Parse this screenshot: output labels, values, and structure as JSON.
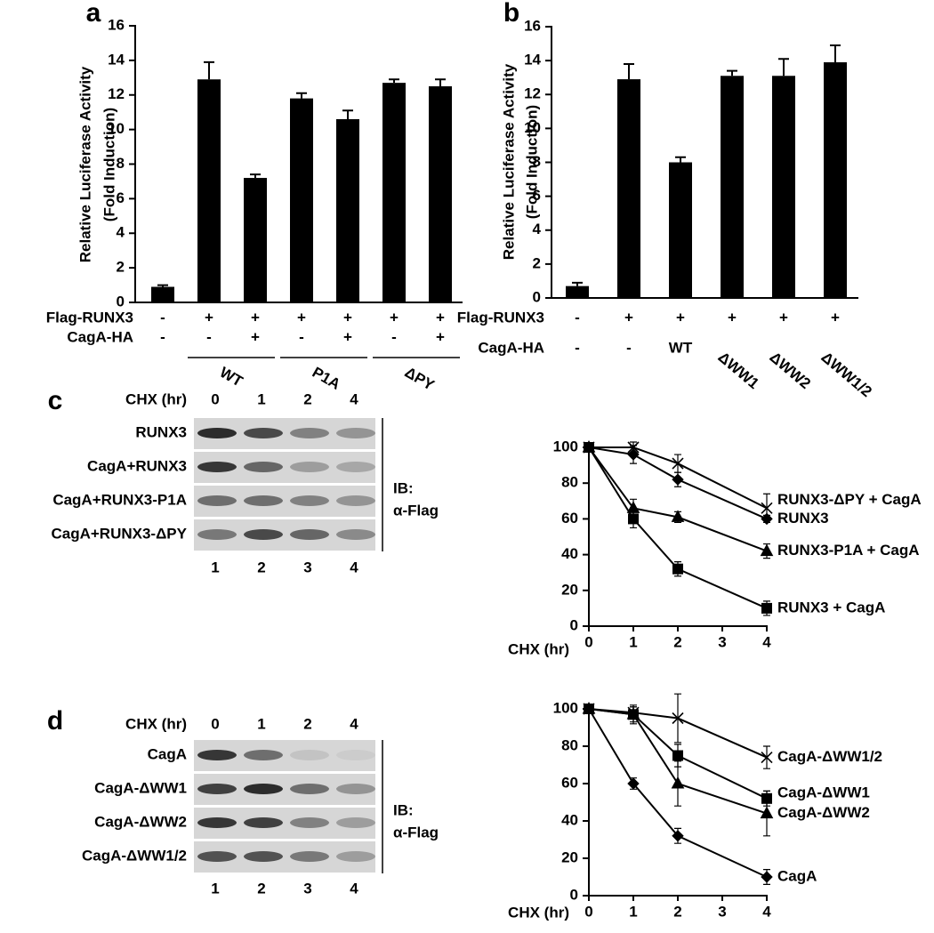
{
  "chart_data": [
    {
      "type": "bar",
      "panel": "a",
      "ylabel": [
        "Relative Luciferase Activity",
        "(Fold Induction)"
      ],
      "values": [
        0.9,
        12.9,
        7.2,
        11.8,
        10.6,
        12.7,
        12.5
      ],
      "errors": [
        0.1,
        1.0,
        0.2,
        0.3,
        0.5,
        0.2,
        0.4
      ],
      "color": "#000000",
      "ylim": [
        0,
        16
      ],
      "yticks": [
        0,
        2,
        4,
        6,
        8,
        10,
        12,
        14,
        16
      ],
      "conditions": [
        {
          "name": "Flag-RUNX3",
          "values": [
            "-",
            "+",
            "+",
            "+",
            "+",
            "+",
            "+"
          ]
        },
        {
          "name": "CagA-HA",
          "values": [
            "-",
            "-",
            "+",
            "-",
            "+",
            "-",
            "+"
          ]
        }
      ],
      "groups": [
        {
          "label": "WT",
          "from": 1,
          "to": 2
        },
        {
          "label": "P1A",
          "from": 3,
          "to": 4
        },
        {
          "label": "ΔPY",
          "from": 5,
          "to": 6
        }
      ]
    },
    {
      "type": "bar",
      "panel": "b",
      "ylabel": [
        "Relative Luciferase Activity",
        "(Fold Induction)"
      ],
      "values": [
        0.7,
        12.9,
        8.0,
        13.1,
        13.1,
        13.9
      ],
      "errors": [
        0.2,
        0.9,
        0.3,
        0.3,
        1.0,
        1.0
      ],
      "color": "#000000",
      "ylim": [
        0,
        16
      ],
      "yticks": [
        0,
        2,
        4,
        6,
        8,
        10,
        12,
        14,
        16
      ],
      "conditions": [
        {
          "name": "Flag-RUNX3",
          "values": [
            "-",
            "+",
            "+",
            "+",
            "+",
            "+"
          ]
        },
        {
          "name": "CagA-HA",
          "values": [
            "-",
            "-",
            "WT",
            "ΔWW1",
            "ΔWW2",
            "ΔWW1/2"
          ]
        }
      ]
    },
    {
      "type": "line",
      "xlabel": "CHX (hr)",
      "x": [
        0,
        1,
        2,
        4
      ],
      "xlim": [
        0,
        4
      ],
      "xticks": [
        0,
        1,
        2,
        3,
        4
      ],
      "ylim": [
        0,
        100
      ],
      "yticks": [
        0,
        20,
        40,
        60,
        80,
        100
      ],
      "series": [
        {
          "name": "RUNX3-ΔPY + CagA",
          "color": "#000000",
          "marker": "x",
          "values": [
            100,
            100,
            91,
            66
          ],
          "errors": [
            0,
            3,
            5,
            8
          ]
        },
        {
          "name": "RUNX3",
          "color": "#000000",
          "marker": "diamond",
          "values": [
            100,
            96,
            82,
            60
          ],
          "errors": [
            0,
            5,
            4,
            2
          ]
        },
        {
          "name": "RUNX3-P1A + CagA",
          "color": "#000000",
          "marker": "triangle",
          "values": [
            100,
            66,
            61,
            42
          ],
          "errors": [
            0,
            5,
            3,
            4
          ]
        },
        {
          "name": "RUNX3 + CagA",
          "color": "#000000",
          "marker": "square",
          "values": [
            100,
            60,
            32,
            10
          ],
          "errors": [
            0,
            5,
            4,
            4
          ]
        }
      ]
    },
    {
      "type": "line",
      "xlabel": "CHX (hr)",
      "x": [
        0,
        1,
        2,
        4
      ],
      "xlim": [
        0,
        4
      ],
      "xticks": [
        0,
        1,
        2,
        3,
        4
      ],
      "ylim": [
        0,
        100
      ],
      "yticks": [
        0,
        20,
        40,
        60,
        80,
        100
      ],
      "series": [
        {
          "name": "CagA-ΔWW1/2",
          "color": "#000000",
          "marker": "x",
          "values": [
            100,
            98,
            95,
            74
          ],
          "errors": [
            0,
            3,
            13,
            6
          ]
        },
        {
          "name": "CagA-ΔWW1",
          "color": "#000000",
          "marker": "square",
          "values": [
            100,
            97,
            75,
            52
          ],
          "errors": [
            0,
            4,
            6,
            4
          ]
        },
        {
          "name": "CagA-ΔWW2",
          "color": "#000000",
          "marker": "triangle",
          "values": [
            100,
            97,
            60,
            44
          ],
          "errors": [
            0,
            5,
            12,
            12
          ]
        },
        {
          "name": "CagA",
          "color": "#000000",
          "marker": "diamond",
          "values": [
            100,
            60,
            32,
            10
          ],
          "errors": [
            0,
            3,
            4,
            4
          ]
        }
      ]
    }
  ],
  "blots": [
    {
      "panel": "c",
      "time_label": "CHX (hr)",
      "times": [
        "0",
        "1",
        "2",
        "4"
      ],
      "rows": [
        "RUNX3",
        "CagA+RUNX3",
        "CagA+RUNX3-P1A",
        "CagA+RUNX3-ΔPY"
      ],
      "lanes": [
        "1",
        "2",
        "3",
        "4"
      ],
      "ib": "IB:",
      "antibody": "α-Flag"
    },
    {
      "panel": "d",
      "time_label": "CHX (hr)",
      "times": [
        "0",
        "1",
        "2",
        "4"
      ],
      "rows": [
        "CagA",
        "CagA-ΔWW1",
        "CagA-ΔWW2",
        "CagA-ΔWW1/2"
      ],
      "lanes": [
        "1",
        "2",
        "3",
        "4"
      ],
      "ib": "IB:",
      "antibody": "α-Flag"
    }
  ]
}
